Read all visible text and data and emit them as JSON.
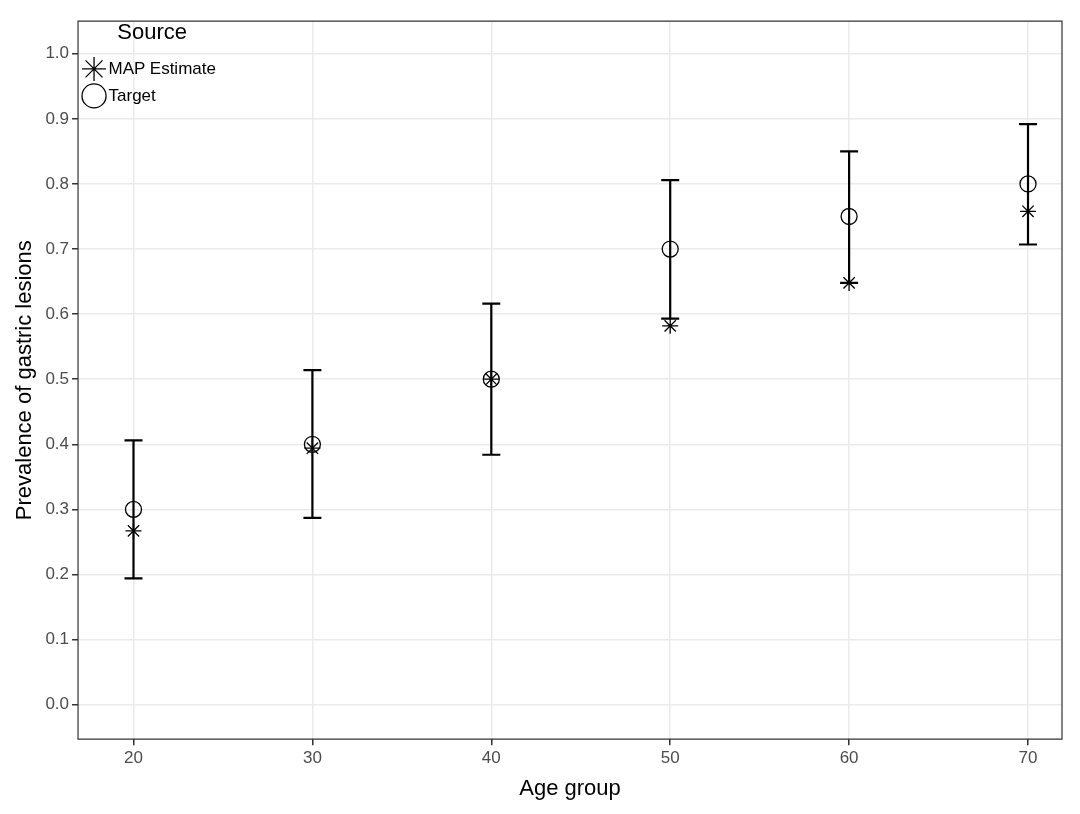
{
  "chart_data": {
    "type": "scatter",
    "xlabel": "Age group",
    "ylabel": "Prevalence of gastric lesions",
    "legend_title": "Source",
    "x": [
      20,
      30,
      40,
      50,
      60,
      70
    ],
    "series": [
      {
        "name": "MAP Estimate",
        "color": "#000000",
        "marker": "cross",
        "values": [
          0.267,
          0.394,
          0.5,
          0.582,
          0.648,
          0.758
        ],
        "errors": [
          [
            0.194,
            0.406
          ],
          [
            0.287,
            0.514
          ],
          [
            0.384,
            0.616
          ],
          [
            0.593,
            0.806
          ],
          [
            0.648,
            0.85
          ],
          [
            0.707,
            0.892
          ]
        ]
      },
      {
        "name": "Target",
        "color": "#000000",
        "marker": "circle",
        "values": [
          0.3,
          0.4,
          0.5,
          0.7,
          0.75,
          0.8
        ]
      }
    ],
    "xlim": [
      16.9,
      71.9
    ],
    "xticks": [
      20,
      30,
      40,
      50,
      60,
      70
    ],
    "ylim": [
      -0.053,
      1.05
    ],
    "yticks": [
      {
        "value": 0,
        "label": "0.0"
      },
      0.1,
      0.2,
      0.3,
      0.4,
      0.5,
      0.6,
      0.7,
      0.8,
      0.9,
      {
        "value": 1,
        "label": "1.0"
      }
    ],
    "grid": true,
    "legend": "top left"
  }
}
